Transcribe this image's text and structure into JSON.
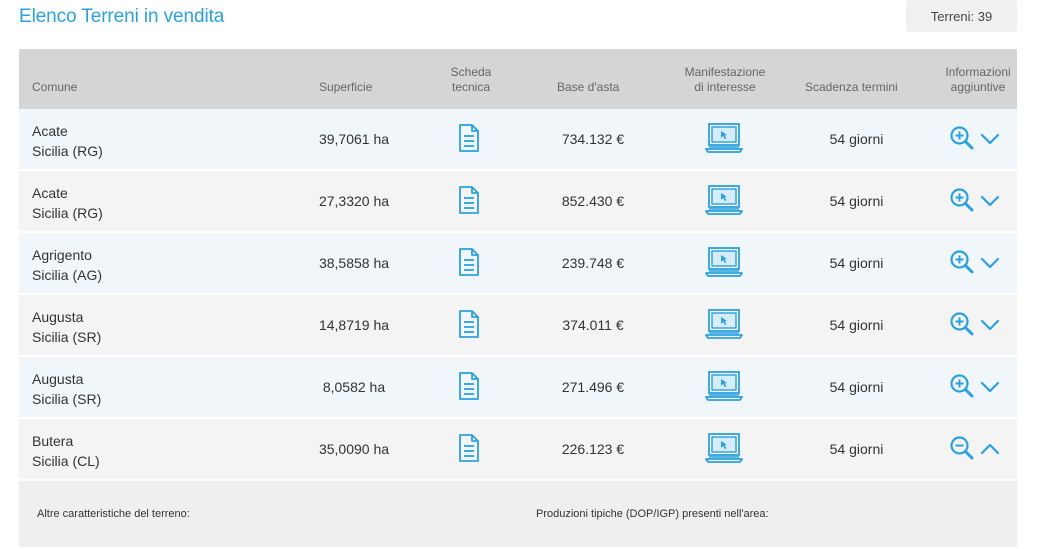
{
  "header": {
    "title": "Elenco Terreni in vendita",
    "count_label": "Terreni: 39"
  },
  "columns": {
    "comune": "Comune",
    "superficie": "Superficie",
    "scheda_line1": "Scheda",
    "scheda_line2": "tecnica",
    "base": "Base d'asta",
    "manif_line1": "Manifestazione",
    "manif_line2": "di interesse",
    "scadenza": "Scadenza termini",
    "info_line1": "Informazioni",
    "info_line2": "aggiuntive"
  },
  "rows": [
    {
      "comune": "Acate",
      "regione": "Sicilia (RG)",
      "superficie": "39,7061 ha",
      "base": "734.132 €",
      "scadenza": "54 giorni",
      "expanded": false
    },
    {
      "comune": "Acate",
      "regione": "Sicilia (RG)",
      "superficie": "27,3320 ha",
      "base": "852.430 €",
      "scadenza": "54 giorni",
      "expanded": false
    },
    {
      "comune": "Agrigento",
      "regione": "Sicilia (AG)",
      "superficie": "38,5858 ha",
      "base": "239.748 €",
      "scadenza": "54 giorni",
      "expanded": false
    },
    {
      "comune": "Augusta",
      "regione": "Sicilia (SR)",
      "superficie": "14,8719 ha",
      "base": "374.011 €",
      "scadenza": "54 giorni",
      "expanded": false
    },
    {
      "comune": "Augusta",
      "regione": "Sicilia (SR)",
      "superficie": "8,0582 ha",
      "base": "271.496 €",
      "scadenza": "54 giorni",
      "expanded": false
    },
    {
      "comune": "Butera",
      "regione": "Sicilia (CL)",
      "superficie": "35,0090 ha",
      "base": "226.123 €",
      "scadenza": "54 giorni",
      "expanded": true
    }
  ],
  "detail": {
    "altre_label": "Altre caratteristiche del terreno:",
    "produzioni_label": "Produzioni tipiche (DOP/IGP) presenti nell'area:"
  },
  "colors": {
    "accent": "#2aa1de",
    "header_bg": "#d5d5d5",
    "row_odd": "#f1f6fb",
    "row_even": "#f4f4f4"
  },
  "icons": {
    "scheda": "document-icon",
    "manifestazione": "monitor-icon",
    "zoom_in": "zoom-in-icon",
    "zoom_out": "zoom-out-icon",
    "chevron_down": "chevron-down-icon",
    "chevron_up": "chevron-up-icon"
  }
}
